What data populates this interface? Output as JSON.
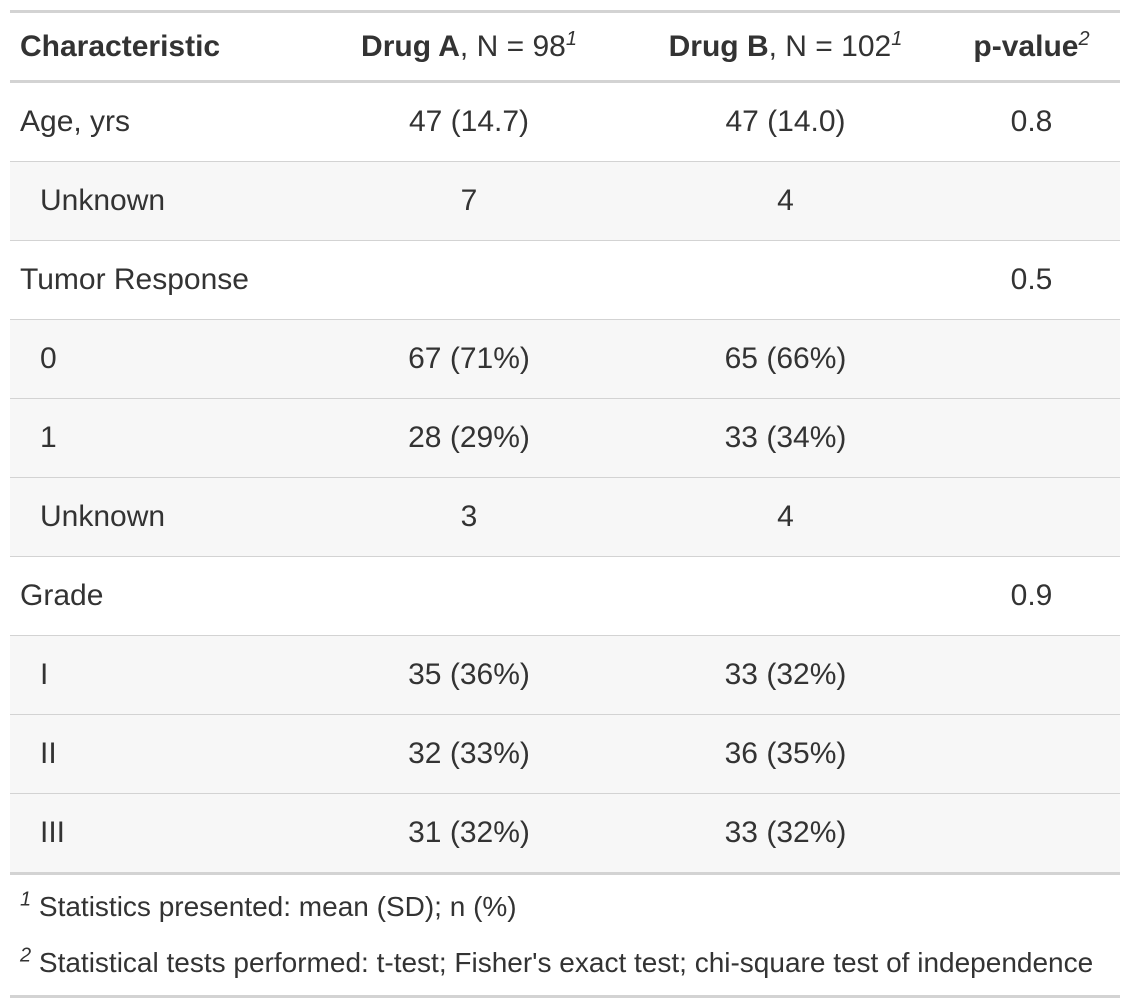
{
  "header": {
    "characteristic": "Characteristic",
    "drug_a_bold": "Drug A",
    "drug_a_rest": ", N = 98",
    "drug_a_sup": "1",
    "drug_b_bold": "Drug B",
    "drug_b_rest": ", N = 102",
    "drug_b_sup": "1",
    "pvalue_bold": "p-value",
    "pvalue_sup": "2"
  },
  "rows": [
    {
      "label": "Age, yrs",
      "a": "47 (14.7)",
      "b": "47 (14.0)",
      "p": "0.8"
    },
    {
      "label": "Unknown",
      "a": "7",
      "b": "4",
      "p": ""
    },
    {
      "label": "Tumor Response",
      "a": "",
      "b": "",
      "p": "0.5"
    },
    {
      "label": "0",
      "a": "67 (71%)",
      "b": "65 (66%)",
      "p": ""
    },
    {
      "label": "1",
      "a": "28 (29%)",
      "b": "33 (34%)",
      "p": ""
    },
    {
      "label": "Unknown",
      "a": "3",
      "b": "4",
      "p": ""
    },
    {
      "label": "Grade",
      "a": "",
      "b": "",
      "p": "0.9"
    },
    {
      "label": "I",
      "a": "35 (36%)",
      "b": "33 (32%)",
      "p": ""
    },
    {
      "label": "II",
      "a": "32 (33%)",
      "b": "36 (35%)",
      "p": ""
    },
    {
      "label": "III",
      "a": "31 (32%)",
      "b": "33 (32%)",
      "p": ""
    }
  ],
  "footnotes": [
    {
      "mark": "1",
      "text": "Statistics presented: mean (SD); n (%)"
    },
    {
      "mark": "2",
      "text": "Statistical tests performed: t-test; Fisher's exact test; chi-square test of independence"
    }
  ]
}
